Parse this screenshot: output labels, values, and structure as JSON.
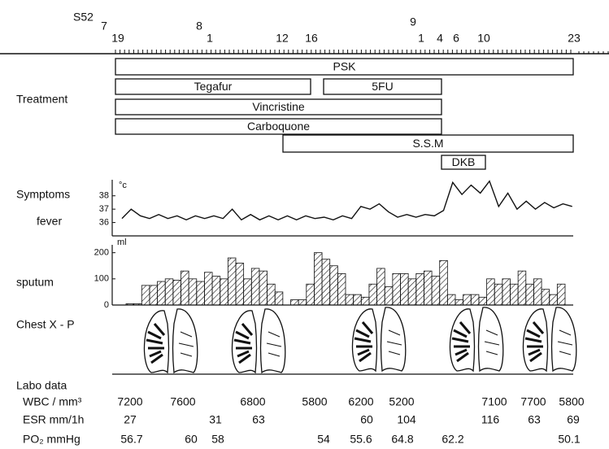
{
  "timeline": {
    "era": "S52",
    "months": [
      "7",
      "8",
      "9"
    ],
    "days": [
      "19",
      "1",
      "12",
      "16",
      "1",
      "4",
      "6",
      "10",
      "23"
    ]
  },
  "treatment": {
    "label": "Treatment",
    "drugs": [
      "PSK",
      "Tegafur",
      "5FU",
      "Vincristine",
      "Carboquone",
      "S.S.M",
      "DKB"
    ]
  },
  "symptoms": {
    "label": "Symptoms",
    "fever": {
      "label": "fever",
      "unit": "°c",
      "ylim": [
        35,
        39.2
      ],
      "yticks": [
        36,
        37,
        38
      ],
      "values": [
        36.3,
        37.0,
        36.5,
        36.3,
        36.6,
        36.3,
        36.5,
        36.2,
        36.5,
        36.3,
        36.5,
        36.3,
        37.0,
        36.2,
        36.6,
        36.2,
        36.5,
        36.2,
        36.5,
        36.2,
        36.5,
        36.3,
        36.4,
        36.2,
        36.5,
        36.3,
        37.2,
        37.0,
        37.4,
        36.8,
        36.4,
        36.6,
        36.4,
        36.6,
        36.5,
        36.9,
        39.0,
        38.1,
        38.8,
        38.2,
        39.1,
        37.2,
        38.2,
        37.0,
        37.6,
        37.0,
        37.5,
        37.1,
        37.4,
        37.2
      ]
    },
    "sputum": {
      "label": "sputum",
      "unit": "ml",
      "ylim": [
        0,
        230
      ],
      "yticks": [
        0,
        100,
        200
      ],
      "values": [
        5,
        5,
        75,
        75,
        90,
        100,
        95,
        130,
        100,
        90,
        125,
        110,
        100,
        180,
        160,
        100,
        140,
        130,
        80,
        50,
        0,
        20,
        20,
        80,
        200,
        175,
        150,
        120,
        40,
        40,
        30,
        80,
        140,
        70,
        120,
        120,
        100,
        120,
        130,
        110,
        170,
        40,
        20,
        40,
        40,
        30,
        100,
        80,
        100,
        80,
        130,
        80,
        100,
        60,
        40,
        80
      ]
    }
  },
  "chest_xp": {
    "label": "Chest X - P"
  },
  "labo": {
    "label": "Labo data",
    "rows": [
      {
        "label": "WBC / mm³",
        "values": [
          7200,
          7600,
          6800,
          5800,
          6200,
          5200,
          7100,
          7700,
          5800
        ]
      },
      {
        "label": "ESR mm/1h",
        "values": [
          27,
          31,
          63,
          60,
          104,
          116,
          63,
          69
        ]
      },
      {
        "label": "PO₂ mmHg",
        "values": [
          56.7,
          60,
          58,
          54,
          55.6,
          64.8,
          62.2,
          50.1
        ]
      }
    ]
  }
}
